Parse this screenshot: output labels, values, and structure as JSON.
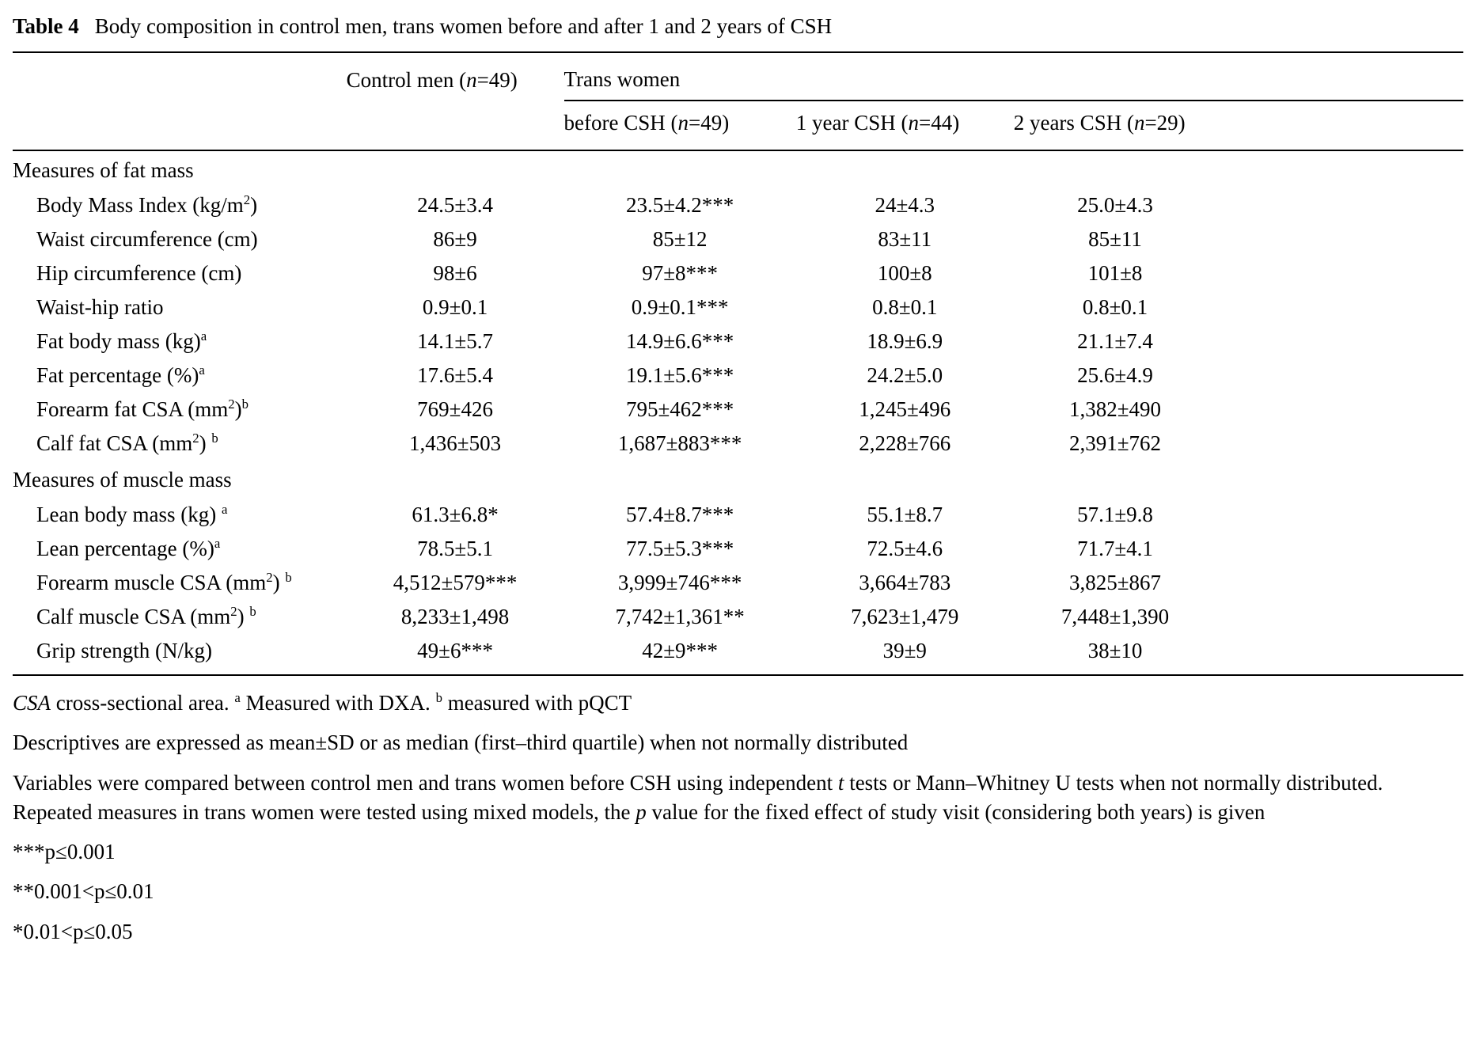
{
  "title": {
    "label": "Table 4",
    "text": "Body composition in control men, trans women before and after 1 and 2 years of CSH"
  },
  "table": {
    "col_group_headers": {
      "control": "Control men (~{n}=49)",
      "trans": "Trans women"
    },
    "sub_headers": [
      "before CSH (~{n}=49)",
      "1 year CSH (~{n}=44)",
      "2 years CSH (~{n}=29)"
    ],
    "sections": [
      {
        "header": "Measures of fat mass",
        "rows": [
          {
            "label": "Body Mass Index (kg/m^{2})",
            "values": [
              "24.5±3.4",
              "23.5±4.2***",
              "24±4.3",
              "25.0±4.3"
            ]
          },
          {
            "label": "Waist circumference (cm)",
            "values": [
              "86±9",
              "85±12",
              "83±11",
              "85±11"
            ]
          },
          {
            "label": "Hip circumference (cm)",
            "values": [
              "98±6",
              "97±8***",
              "100±8",
              "101±8"
            ]
          },
          {
            "label": "Waist-hip ratio",
            "values": [
              "0.9±0.1",
              "0.9±0.1***",
              "0.8±0.1",
              "0.8±0.1"
            ]
          },
          {
            "label": "Fat body mass (kg)^{a}",
            "values": [
              "14.1±5.7",
              "14.9±6.6***",
              "18.9±6.9",
              "21.1±7.4"
            ]
          },
          {
            "label": "Fat percentage (%)^{a}",
            "values": [
              "17.6±5.4",
              "19.1±5.6***",
              "24.2±5.0",
              "25.6±4.9"
            ]
          },
          {
            "label": "Forearm fat CSA (mm^{2})^{b}",
            "values": [
              "769±426",
              "795±462***",
              "1,245±496",
              "1,382±490"
            ]
          },
          {
            "label": "Calf fat CSA (mm^{2}) ^{b}",
            "values": [
              "1,436±503",
              "1,687±883***",
              "2,228±766",
              "2,391±762"
            ]
          }
        ]
      },
      {
        "header": "Measures of muscle mass",
        "rows": [
          {
            "label": "Lean body mass (kg) ^{a}",
            "values": [
              "61.3±6.8*",
              "57.4±8.7***",
              "55.1±8.7",
              "57.1±9.8"
            ]
          },
          {
            "label": "Lean percentage (%)^{a}",
            "values": [
              "78.5±5.1",
              "77.5±5.3***",
              "72.5±4.6",
              "71.7±4.1"
            ]
          },
          {
            "label": "Forearm muscle CSA (mm^{2}) ^{b}",
            "values": [
              "4,512±579***",
              "3,999±746***",
              "3,664±783",
              "3,825±867"
            ]
          },
          {
            "label": "Calf muscle CSA (mm^{2}) ^{b}",
            "values": [
              "8,233±1,498",
              "7,742±1,361**",
              "7,623±1,479",
              "7,448±1,390"
            ]
          },
          {
            "label": "Grip strength (N/kg)",
            "values": [
              "49±6***",
              "42±9***",
              "39±9",
              "38±10"
            ]
          }
        ]
      }
    ]
  },
  "footnotes": [
    "~{CSA} cross-sectional area. ^{a} Measured with DXA. ^{b} measured with pQCT",
    "Descriptives are expressed as mean±SD or as median (first–third quartile) when not normally distributed",
    "Variables were compared between control men and trans women before CSH using independent ~{t} tests or Mann–Whitney U tests when not normally distributed. Repeated measures in trans women were tested using mixed models, the ~{p} value for the fixed effect of study visit (considering both years) is given",
    "***p≤0.001",
    "**0.001<p≤0.01",
    "*0.01<p≤0.05"
  ]
}
